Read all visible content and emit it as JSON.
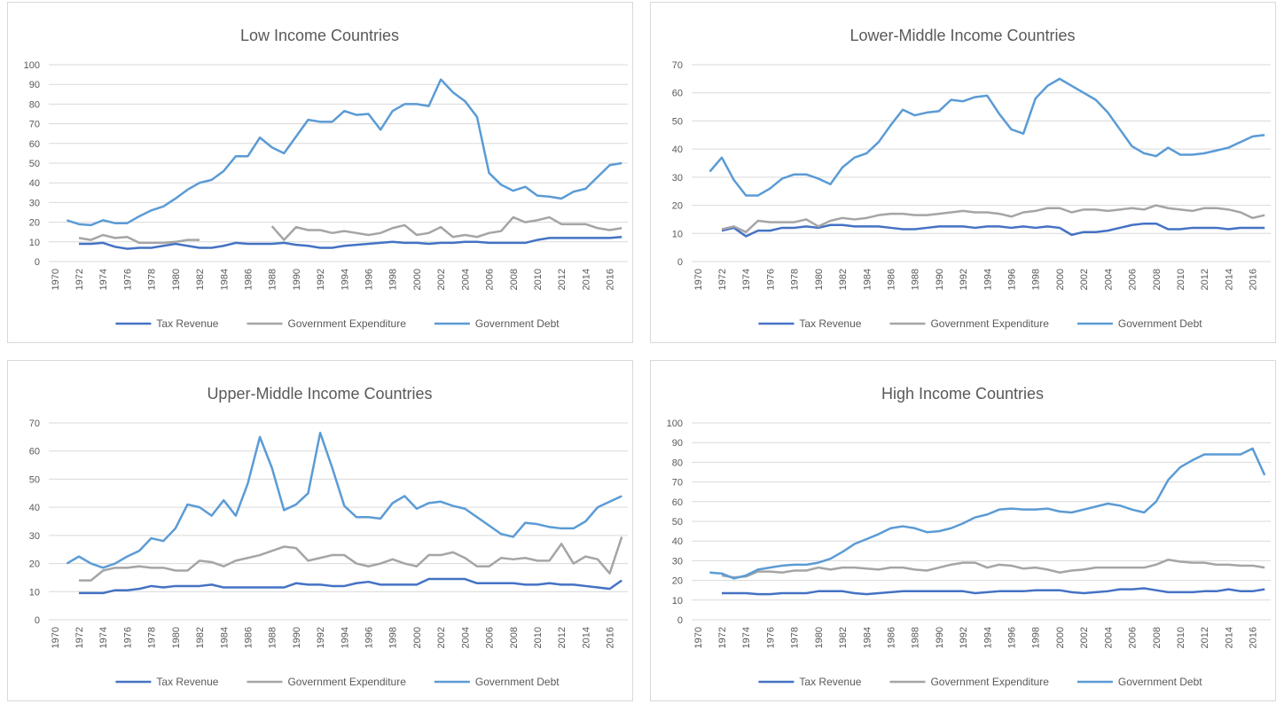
{
  "chart_data": [
    {
      "type": "line",
      "title": "Low Income Countries",
      "categories": [
        "1970",
        null,
        "1972",
        null,
        "1974",
        null,
        "1976",
        null,
        "1978",
        null,
        "1980",
        null,
        "1982",
        null,
        "1984",
        null,
        "1986",
        null,
        "1988",
        null,
        "1990",
        null,
        "1992",
        null,
        "1994",
        null,
        "1996",
        null,
        "1998",
        null,
        "2000",
        null,
        "2002",
        null,
        "2004",
        null,
        "2006",
        null,
        "2008",
        null,
        "2010",
        null,
        "2012",
        null,
        "2014",
        null,
        "2016",
        null
      ],
      "ylim": [
        0,
        100
      ],
      "yticks": [
        0,
        10,
        20,
        30,
        40,
        50,
        60,
        70,
        80,
        90,
        100
      ],
      "grid": true,
      "legend": "bottom",
      "series": [
        {
          "name": "Tax Revenue",
          "color": "#4472c4",
          "values": [
            null,
            null,
            9,
            9,
            9.5,
            7.5,
            6.5,
            7,
            7,
            8,
            9,
            8,
            7,
            7,
            8,
            9.5,
            9,
            9,
            9,
            9.5,
            8.5,
            8,
            7,
            7,
            8,
            8.5,
            9,
            9.5,
            10,
            9.5,
            9.5,
            9,
            9.5,
            9.5,
            10,
            10,
            9.5,
            9.5,
            9.5,
            9.5,
            11,
            12,
            12,
            12,
            12,
            12,
            12,
            12.5
          ]
        },
        {
          "name": "Government Expenditure",
          "color": "#a5a5a5",
          "values": [
            null,
            null,
            12,
            11,
            13.5,
            12,
            12.5,
            9.5,
            9.5,
            9.5,
            10,
            11,
            11,
            null,
            null,
            null,
            null,
            null,
            18,
            11,
            17.5,
            16,
            16,
            14.5,
            15.5,
            14.5,
            13.5,
            14.5,
            17,
            18.5,
            13.5,
            14.5,
            17.5,
            12.5,
            13.5,
            12.5,
            14.5,
            15.5,
            22.5,
            20,
            21,
            22.5,
            19,
            19,
            19,
            17,
            16,
            17
          ]
        },
        {
          "name": "Government Debt",
          "color": "#5b9bd5",
          "values": [
            null,
            21,
            19,
            18.5,
            21,
            19.5,
            19.5,
            23,
            26,
            28,
            32,
            36.5,
            40,
            41.5,
            46,
            53.5,
            53.5,
            63,
            58,
            55,
            63.5,
            72,
            71,
            71,
            76.5,
            74.5,
            75,
            67,
            76.5,
            80,
            80,
            79,
            92.5,
            86,
            81.5,
            73.5,
            45,
            39,
            36,
            38,
            33.5,
            33,
            32,
            35.5,
            37,
            43,
            49,
            50
          ]
        }
      ]
    },
    {
      "type": "line",
      "title": "Lower-Middle Income Countries",
      "categories": [
        "1970",
        null,
        "1972",
        null,
        "1974",
        null,
        "1976",
        null,
        "1978",
        null,
        "1980",
        null,
        "1982",
        null,
        "1984",
        null,
        "1986",
        null,
        "1988",
        null,
        "1990",
        null,
        "1992",
        null,
        "1994",
        null,
        "1996",
        null,
        "1998",
        null,
        "2000",
        null,
        "2002",
        null,
        "2004",
        null,
        "2006",
        null,
        "2008",
        null,
        "2010",
        null,
        "2012",
        null,
        "2014",
        null,
        "2016",
        null
      ],
      "ylim": [
        0,
        70
      ],
      "yticks": [
        0,
        10,
        20,
        30,
        40,
        50,
        60,
        70
      ],
      "grid": true,
      "legend": "bottom",
      "series": [
        {
          "name": "Tax Revenue",
          "color": "#4472c4",
          "values": [
            null,
            null,
            11,
            12,
            9,
            11,
            11,
            12,
            12,
            12.5,
            12,
            13,
            13,
            12.5,
            12.5,
            12.5,
            12,
            11.5,
            11.5,
            12,
            12.5,
            12.5,
            12.5,
            12,
            12.5,
            12.5,
            12,
            12.5,
            12,
            12.5,
            12,
            9.5,
            10.5,
            10.5,
            11,
            12,
            13,
            13.5,
            13.5,
            11.5,
            11.5,
            12,
            12,
            12,
            11.5,
            12,
            12,
            12
          ]
        },
        {
          "name": "Government Expenditure",
          "color": "#a5a5a5",
          "values": [
            null,
            null,
            11.5,
            12.5,
            10.5,
            14.5,
            14,
            14,
            14,
            15,
            12.5,
            14.5,
            15.5,
            15,
            15.5,
            16.5,
            17,
            17,
            16.5,
            16.5,
            17,
            17.5,
            18,
            17.5,
            17.5,
            17,
            16,
            17.5,
            18,
            19,
            19,
            17.5,
            18.5,
            18.5,
            18,
            18.5,
            19,
            18.5,
            20,
            19,
            18.5,
            18,
            19,
            19,
            18.5,
            17.5,
            15.5,
            16.5
          ]
        },
        {
          "name": "Government Debt",
          "color": "#5b9bd5",
          "values": [
            null,
            32,
            37,
            29,
            23.5,
            23.5,
            26,
            29.5,
            31,
            31,
            29.5,
            27.5,
            33.5,
            37,
            38.5,
            42.5,
            48.5,
            54,
            52,
            53,
            53.5,
            57.5,
            57,
            58.5,
            59,
            52.5,
            47,
            45.5,
            58,
            62.5,
            65,
            62.5,
            60,
            57.5,
            53,
            47,
            41,
            38.5,
            37.5,
            40.5,
            38,
            38,
            38.5,
            39.5,
            40.5,
            42.5,
            44.5,
            45
          ]
        }
      ]
    },
    {
      "type": "line",
      "title": "Upper-Middle Income Countries",
      "categories": [
        "1970",
        null,
        "1972",
        null,
        "1974",
        null,
        "1976",
        null,
        "1978",
        null,
        "1980",
        null,
        "1982",
        null,
        "1984",
        null,
        "1986",
        null,
        "1988",
        null,
        "1990",
        null,
        "1992",
        null,
        "1994",
        null,
        "1996",
        null,
        "1998",
        null,
        "2000",
        null,
        "2002",
        null,
        "2004",
        null,
        "2006",
        null,
        "2008",
        null,
        "2010",
        null,
        "2012",
        null,
        "2014",
        null,
        "2016",
        null
      ],
      "ylim": [
        0,
        70
      ],
      "yticks": [
        0,
        10,
        20,
        30,
        40,
        50,
        60,
        70
      ],
      "grid": true,
      "legend": "bottom",
      "series": [
        {
          "name": "Tax Revenue",
          "color": "#4472c4",
          "values": [
            null,
            null,
            9.5,
            9.5,
            9.5,
            10.5,
            10.5,
            11,
            12,
            11.5,
            12,
            12,
            12,
            12.5,
            11.5,
            11.5,
            11.5,
            11.5,
            11.5,
            11.5,
            13,
            12.5,
            12.5,
            12,
            12,
            13,
            13.5,
            12.5,
            12.5,
            12.5,
            12.5,
            14.5,
            14.5,
            14.5,
            14.5,
            13,
            13,
            13,
            13,
            12.5,
            12.5,
            13,
            12.5,
            12.5,
            12,
            11.5,
            11,
            14
          ]
        },
        {
          "name": "Government Expenditure",
          "color": "#a5a5a5",
          "values": [
            null,
            null,
            14,
            14,
            17.5,
            18.5,
            18.5,
            19,
            18.5,
            18.5,
            17.5,
            17.5,
            21,
            20.5,
            19,
            21,
            22,
            23,
            24.5,
            26,
            25.5,
            21,
            22,
            23,
            23,
            20,
            19,
            20,
            21.5,
            20,
            19,
            23,
            23,
            24,
            22,
            19,
            19,
            22,
            21.5,
            22,
            21,
            21,
            27,
            20,
            22.5,
            21.5,
            16.5,
            29.5
          ]
        },
        {
          "name": "Government Debt",
          "color": "#5b9bd5",
          "values": [
            null,
            20,
            22.5,
            20,
            18.5,
            20,
            22.5,
            24.5,
            29,
            28,
            32.5,
            41,
            40,
            37,
            42.5,
            37,
            48.5,
            65,
            54,
            39,
            41,
            45,
            66.5,
            54,
            40.5,
            36.5,
            36.5,
            36,
            41.5,
            44,
            39.5,
            41.5,
            42,
            40.5,
            39.5,
            36.5,
            33.5,
            30.5,
            29.5,
            34.5,
            34,
            33,
            32.5,
            32.5,
            35,
            40,
            42,
            44
          ]
        }
      ]
    },
    {
      "type": "line",
      "title": "High Income Countries",
      "categories": [
        "1970",
        null,
        "1972",
        null,
        "1974",
        null,
        "1976",
        null,
        "1978",
        null,
        "1980",
        null,
        "1982",
        null,
        "1984",
        null,
        "1986",
        null,
        "1988",
        null,
        "1990",
        null,
        "1992",
        null,
        "1994",
        null,
        "1996",
        null,
        "1998",
        null,
        "2000",
        null,
        "2002",
        null,
        "2004",
        null,
        "2006",
        null,
        "2008",
        null,
        "2010",
        null,
        "2012",
        null,
        "2014",
        null,
        "2016",
        null
      ],
      "ylim": [
        0,
        100
      ],
      "yticks": [
        0,
        10,
        20,
        30,
        40,
        50,
        60,
        70,
        80,
        90,
        100
      ],
      "grid": true,
      "legend": "bottom",
      "series": [
        {
          "name": "Tax Revenue",
          "color": "#4472c4",
          "values": [
            null,
            null,
            13.5,
            13.5,
            13.5,
            13,
            13,
            13.5,
            13.5,
            13.5,
            14.5,
            14.5,
            14.5,
            13.5,
            13,
            13.5,
            14,
            14.5,
            14.5,
            14.5,
            14.5,
            14.5,
            14.5,
            13.5,
            14,
            14.5,
            14.5,
            14.5,
            15,
            15,
            15,
            14,
            13.5,
            14,
            14.5,
            15.5,
            15.5,
            16,
            15,
            14,
            14,
            14,
            14.5,
            14.5,
            15.5,
            14.5,
            14.5,
            15.5
          ]
        },
        {
          "name": "Government Expenditure",
          "color": "#a5a5a5",
          "values": [
            null,
            null,
            22.5,
            21.5,
            22,
            24.5,
            24.5,
            24,
            25,
            25,
            26.5,
            25.5,
            26.5,
            26.5,
            26,
            25.5,
            26.5,
            26.5,
            25.5,
            25,
            26.5,
            28,
            29,
            29,
            26.5,
            28,
            27.5,
            26,
            26.5,
            25.5,
            24,
            25,
            25.5,
            26.5,
            26.5,
            26.5,
            26.5,
            26.5,
            28,
            30.5,
            29.5,
            29,
            29,
            28,
            28,
            27.5,
            27.5,
            26.5
          ]
        },
        {
          "name": "Government Debt",
          "color": "#5b9bd5",
          "values": [
            null,
            24,
            23.5,
            21,
            22.5,
            25.5,
            26.5,
            27.5,
            28,
            28,
            29,
            31,
            34.5,
            38.5,
            41,
            43.5,
            46.5,
            47.5,
            46.5,
            44.5,
            45,
            46.5,
            49,
            52,
            53.5,
            56,
            56.5,
            56,
            56,
            56.5,
            55,
            54.5,
            56,
            57.5,
            59,
            58,
            56,
            54.5,
            60,
            71,
            77.5,
            81,
            84,
            84,
            84,
            84,
            87,
            73.5
          ]
        }
      ]
    }
  ]
}
